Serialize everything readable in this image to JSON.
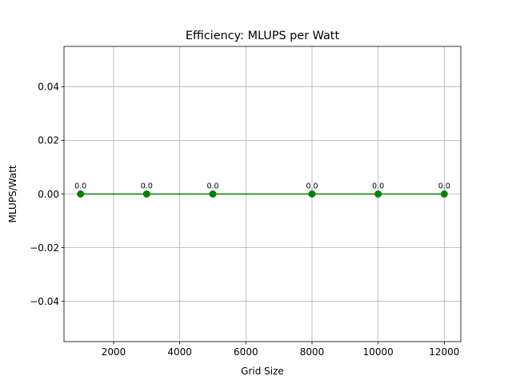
{
  "chart_data": {
    "type": "line",
    "title": "Efficiency: MLUPS per Watt",
    "xlabel": "Grid Size",
    "ylabel": "MLUPS/Watt",
    "xlim": [
      500,
      12500
    ],
    "ylim": [
      -0.055,
      0.055
    ],
    "x_ticks": [
      2000,
      4000,
      6000,
      8000,
      10000,
      12000
    ],
    "y_ticks": [
      -0.04,
      -0.02,
      0.0,
      0.02,
      0.04
    ],
    "y_tick_labels": [
      "−0.04",
      "−0.02",
      "0.00",
      "0.02",
      "0.04"
    ],
    "grid": true,
    "series": [
      {
        "x": [
          1000,
          3000,
          5000,
          8000,
          10000,
          12000
        ],
        "y": [
          0.0,
          0.0,
          0.0,
          0.0,
          0.0,
          0.0
        ],
        "data_labels": [
          "0.0",
          "0.0",
          "0.0",
          "0.0",
          "0.0",
          "0.0"
        ],
        "color": "#008000",
        "marker": "circle"
      }
    ]
  }
}
